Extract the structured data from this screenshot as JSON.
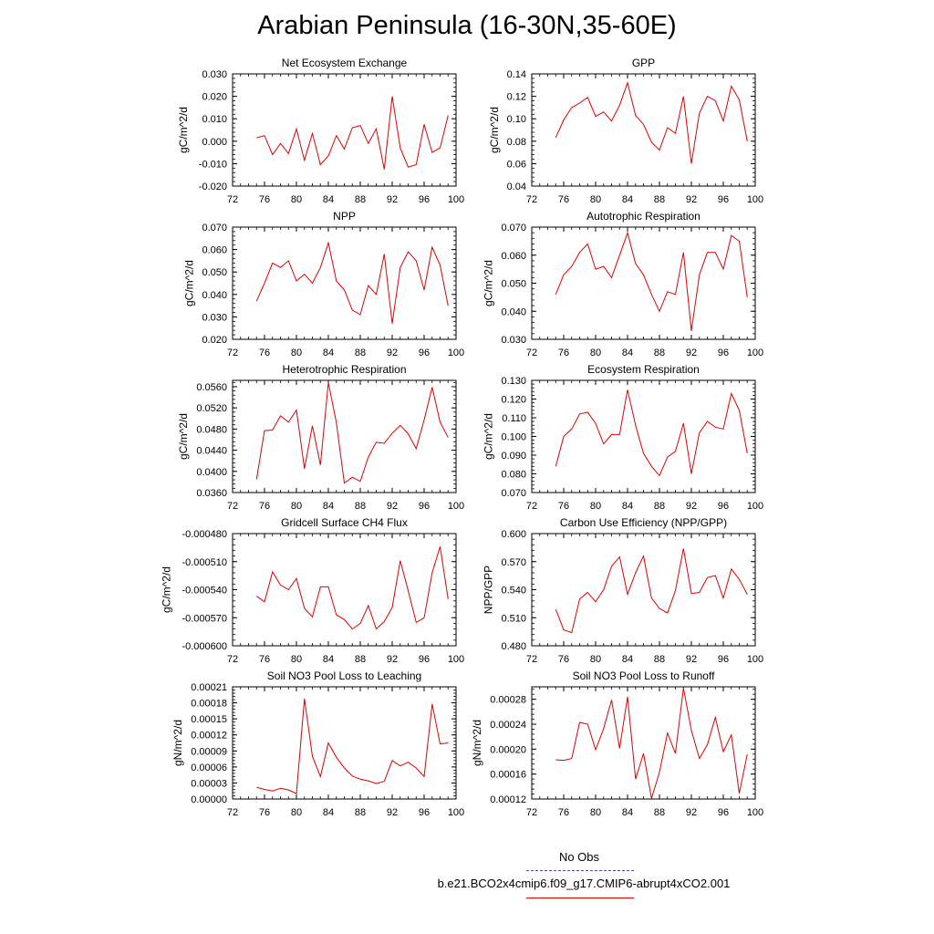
{
  "page": {
    "title": "Arabian Peninsula (16-30N,35-60E)"
  },
  "legend": {
    "obs_label": "No Obs",
    "run_label": "b.e21.BCO2x4cmip6.f09_g17.CMIP6-abrupt4xCO2.001",
    "obs_color": "#4a4ab8",
    "run_color": "#e00000"
  },
  "chart_data": [
    {
      "type": "line",
      "title": "Net Ecosystem Exchange",
      "ylabel": "gC/m^2/d",
      "xlim": [
        72,
        100
      ],
      "xticks": [
        "72",
        "76",
        "80",
        "84",
        "88",
        "92",
        "96",
        "100"
      ],
      "ylim": [
        -0.02,
        0.03
      ],
      "yticks": [
        "-0.020",
        "-0.010",
        "0.000",
        "0.010",
        "0.020",
        "0.030"
      ],
      "x": [
        75,
        76,
        77,
        78,
        79,
        80,
        81,
        82,
        83,
        84,
        85,
        86,
        87,
        88,
        89,
        90,
        91,
        92,
        93,
        94,
        95,
        96,
        97,
        98,
        99
      ],
      "values": [
        0.0015,
        0.0025,
        -0.006,
        -0.001,
        -0.0055,
        0.0055,
        -0.0085,
        0.0035,
        -0.0105,
        -0.0065,
        0.0025,
        -0.0035,
        0.006,
        0.007,
        -0.001,
        0.0055,
        -0.0125,
        0.02,
        -0.003,
        -0.0115,
        -0.0105,
        0.0075,
        -0.005,
        -0.003,
        0.0115
      ]
    },
    {
      "type": "line",
      "title": "GPP",
      "ylabel": "gC/m^2/d",
      "xlim": [
        72,
        100
      ],
      "xticks": [
        "72",
        "76",
        "80",
        "84",
        "88",
        "92",
        "96",
        "100"
      ],
      "ylim": [
        0.04,
        0.14
      ],
      "yticks": [
        "0.04",
        "0.06",
        "0.08",
        "0.10",
        "0.12",
        "0.14"
      ],
      "x": [
        75,
        76,
        77,
        78,
        79,
        80,
        81,
        82,
        83,
        84,
        85,
        86,
        87,
        88,
        89,
        90,
        91,
        92,
        93,
        94,
        95,
        96,
        97,
        98,
        99
      ],
      "values": [
        0.083,
        0.099,
        0.11,
        0.114,
        0.119,
        0.102,
        0.106,
        0.098,
        0.112,
        0.132,
        0.103,
        0.095,
        0.079,
        0.072,
        0.092,
        0.087,
        0.12,
        0.06,
        0.105,
        0.12,
        0.116,
        0.098,
        0.129,
        0.117,
        0.08
      ]
    },
    {
      "type": "line",
      "title": "NPP",
      "ylabel": "gC/m^2/d",
      "xlim": [
        72,
        100
      ],
      "xticks": [
        "72",
        "76",
        "80",
        "84",
        "88",
        "92",
        "96",
        "100"
      ],
      "ylim": [
        0.02,
        0.07
      ],
      "yticks": [
        "0.020",
        "0.030",
        "0.040",
        "0.050",
        "0.060",
        "0.070"
      ],
      "x": [
        75,
        76,
        77,
        78,
        79,
        80,
        81,
        82,
        83,
        84,
        85,
        86,
        87,
        88,
        89,
        90,
        91,
        92,
        93,
        94,
        95,
        96,
        97,
        98,
        99
      ],
      "values": [
        0.037,
        0.045,
        0.054,
        0.052,
        0.055,
        0.046,
        0.049,
        0.045,
        0.052,
        0.063,
        0.046,
        0.042,
        0.033,
        0.031,
        0.044,
        0.04,
        0.058,
        0.027,
        0.052,
        0.059,
        0.055,
        0.042,
        0.061,
        0.053,
        0.035
      ]
    },
    {
      "type": "line",
      "title": "Autotrophic Respiration",
      "ylabel": "gC/m^2/d",
      "xlim": [
        72,
        100
      ],
      "xticks": [
        "72",
        "76",
        "80",
        "84",
        "88",
        "92",
        "96",
        "100"
      ],
      "ylim": [
        0.03,
        0.07
      ],
      "yticks": [
        "0.030",
        "0.040",
        "0.050",
        "0.060",
        "0.070"
      ],
      "x": [
        75,
        76,
        77,
        78,
        79,
        80,
        81,
        82,
        83,
        84,
        85,
        86,
        87,
        88,
        89,
        90,
        91,
        92,
        93,
        94,
        95,
        96,
        97,
        98,
        99
      ],
      "values": [
        0.046,
        0.053,
        0.056,
        0.061,
        0.064,
        0.055,
        0.056,
        0.052,
        0.06,
        0.068,
        0.057,
        0.053,
        0.046,
        0.04,
        0.047,
        0.046,
        0.061,
        0.033,
        0.053,
        0.061,
        0.061,
        0.055,
        0.067,
        0.065,
        0.045
      ]
    },
    {
      "type": "line",
      "title": "Heterotrophic Respiration",
      "ylabel": "gC/m^2/d",
      "xlim": [
        72,
        100
      ],
      "xticks": [
        "72",
        "76",
        "80",
        "84",
        "88",
        "92",
        "96",
        "100"
      ],
      "ylim": [
        0.036,
        0.0572
      ],
      "yticks": [
        "0.0360",
        "0.0400",
        "0.0440",
        "0.0480",
        "0.0520",
        "0.0560"
      ],
      "x": [
        75,
        76,
        77,
        78,
        79,
        80,
        81,
        82,
        83,
        84,
        85,
        86,
        87,
        88,
        89,
        90,
        91,
        92,
        93,
        94,
        95,
        96,
        97,
        98,
        99
      ],
      "values": [
        0.0385,
        0.0477,
        0.0478,
        0.0505,
        0.0493,
        0.0516,
        0.0405,
        0.0486,
        0.0412,
        0.0568,
        0.0492,
        0.0378,
        0.0389,
        0.0381,
        0.0427,
        0.0455,
        0.0453,
        0.0472,
        0.0487,
        0.0471,
        0.0443,
        0.0497,
        0.0559,
        0.0493,
        0.0464
      ]
    },
    {
      "type": "line",
      "title": "Ecosystem Respiration",
      "ylabel": "gC/m^2/d",
      "xlim": [
        72,
        100
      ],
      "xticks": [
        "72",
        "76",
        "80",
        "84",
        "88",
        "92",
        "96",
        "100"
      ],
      "ylim": [
        0.07,
        0.13
      ],
      "yticks": [
        "0.070",
        "0.080",
        "0.090",
        "0.100",
        "0.110",
        "0.120",
        "0.130"
      ],
      "x": [
        75,
        76,
        77,
        78,
        79,
        80,
        81,
        82,
        83,
        84,
        85,
        86,
        87,
        88,
        89,
        90,
        91,
        92,
        93,
        94,
        95,
        96,
        97,
        98,
        99
      ],
      "values": [
        0.084,
        0.1,
        0.104,
        0.112,
        0.113,
        0.107,
        0.096,
        0.101,
        0.101,
        0.125,
        0.106,
        0.091,
        0.084,
        0.079,
        0.089,
        0.092,
        0.107,
        0.08,
        0.102,
        0.108,
        0.105,
        0.104,
        0.123,
        0.114,
        0.091
      ]
    },
    {
      "type": "line",
      "title": "Gridcell Surface CH4 Flux",
      "ylabel": "gC/m^2/d",
      "xlim": [
        72,
        100
      ],
      "xticks": [
        "72",
        "76",
        "80",
        "84",
        "88",
        "92",
        "96",
        "100"
      ],
      "ylim": [
        -0.0006,
        -0.00048
      ],
      "yticks": [
        "-0.000600",
        "-0.000570",
        "-0.000540",
        "-0.000510",
        "-0.000480"
      ],
      "x": [
        75,
        76,
        77,
        78,
        79,
        80,
        81,
        82,
        83,
        84,
        85,
        86,
        87,
        88,
        89,
        90,
        91,
        92,
        93,
        94,
        95,
        96,
        97,
        98,
        99
      ],
      "values": [
        -0.000547,
        -0.000553,
        -0.000521,
        -0.000535,
        -0.00054,
        -0.000528,
        -0.00056,
        -0.000569,
        -0.000537,
        -0.000537,
        -0.000567,
        -0.000572,
        -0.000582,
        -0.000576,
        -0.000557,
        -0.000582,
        -0.000574,
        -0.000559,
        -0.000509,
        -0.000541,
        -0.000575,
        -0.00057,
        -0.000522,
        -0.000494,
        -0.00055
      ]
    },
    {
      "type": "line",
      "title": "Carbon Use Efficiency (NPP/GPP)",
      "ylabel": "NPP/GPP",
      "xlim": [
        72,
        100
      ],
      "xticks": [
        "72",
        "76",
        "80",
        "84",
        "88",
        "92",
        "96",
        "100"
      ],
      "ylim": [
        0.48,
        0.6
      ],
      "yticks": [
        "0.480",
        "0.510",
        "0.540",
        "0.570",
        "0.600"
      ],
      "x": [
        75,
        76,
        77,
        78,
        79,
        80,
        81,
        82,
        83,
        84,
        85,
        86,
        87,
        88,
        89,
        90,
        91,
        92,
        93,
        94,
        95,
        96,
        97,
        98,
        99
      ],
      "values": [
        0.519,
        0.497,
        0.494,
        0.53,
        0.537,
        0.527,
        0.54,
        0.565,
        0.575,
        0.535,
        0.558,
        0.576,
        0.531,
        0.52,
        0.515,
        0.539,
        0.584,
        0.536,
        0.537,
        0.553,
        0.555,
        0.531,
        0.562,
        0.551,
        0.535
      ]
    },
    {
      "type": "line",
      "title": "Soil NO3 Pool Loss to Leaching",
      "ylabel": "gN/m^2/d",
      "xlim": [
        72,
        100
      ],
      "xticks": [
        "72",
        "76",
        "80",
        "84",
        "88",
        "92",
        "96",
        "100"
      ],
      "ylim": [
        0.0,
        0.00021
      ],
      "yticks": [
        "0.00000",
        "0.00003",
        "0.00006",
        "0.00009",
        "0.00012",
        "0.00015",
        "0.00018",
        "0.00021"
      ],
      "x": [
        75,
        76,
        77,
        78,
        79,
        80,
        81,
        82,
        83,
        84,
        85,
        86,
        87,
        88,
        89,
        90,
        91,
        92,
        93,
        94,
        95,
        96,
        97,
        98,
        99
      ],
      "values": [
        2.2e-05,
        1.8e-05,
        1.5e-05,
        2e-05,
        1.7e-05,
        1e-05,
        0.000188,
        8e-05,
        4.2e-05,
        0.000105,
        7.8e-05,
        5.8e-05,
        4.3e-05,
        3.7e-05,
        3.4e-05,
        2.9e-05,
        3.3e-05,
        7.2e-05,
        6.2e-05,
        6.9e-05,
        5.8e-05,
        4.2e-05,
        0.000178,
        0.000103,
        0.000105
      ]
    },
    {
      "type": "line",
      "title": "Soil NO3 Pool Loss to Runoff",
      "ylabel": "gN/m^2/d",
      "xlim": [
        72,
        100
      ],
      "xticks": [
        "72",
        "76",
        "80",
        "84",
        "88",
        "92",
        "96",
        "100"
      ],
      "ylim": [
        0.00012,
        0.0003
      ],
      "yticks": [
        "0.00012",
        "0.00016",
        "0.00020",
        "0.00024",
        "0.00028"
      ],
      "x": [
        75,
        76,
        77,
        78,
        79,
        80,
        81,
        82,
        83,
        84,
        85,
        86,
        87,
        88,
        89,
        90,
        91,
        92,
        93,
        94,
        95,
        96,
        97,
        98,
        99
      ],
      "values": [
        0.000183,
        0.000182,
        0.000185,
        0.000243,
        0.00024,
        0.000199,
        0.000233,
        0.000279,
        0.000201,
        0.000284,
        0.000152,
        0.000193,
        0.000121,
        0.000163,
        0.000226,
        0.000193,
        0.000298,
        0.00023,
        0.000185,
        0.000207,
        0.000251,
        0.000196,
        0.000223,
        0.000129,
        0.000192
      ]
    }
  ]
}
